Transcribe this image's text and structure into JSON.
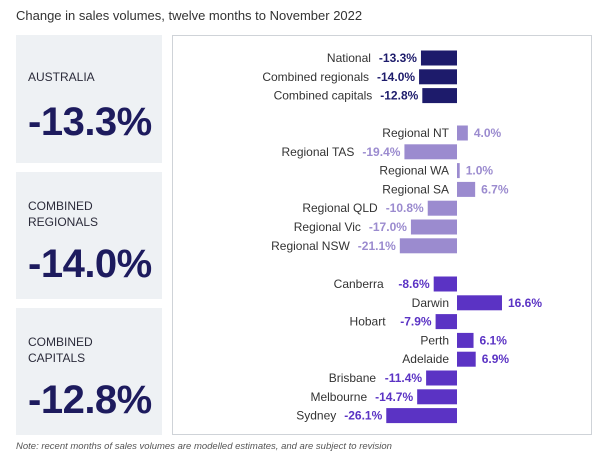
{
  "title": "Change in sales volumes, twelve months to November 2022",
  "cards": [
    {
      "label": "AUSTRALIA",
      "value": "-13.3%"
    },
    {
      "label": "COMBINED\nREGIONALS",
      "value": "-14.0%"
    },
    {
      "label": "COMBINED\nCAPITALS",
      "value": "-12.8%"
    }
  ],
  "note": "Note: recent months of sales volumes are modelled estimates, and are subject to revision",
  "colors": {
    "aggregate": "#1d1b6b",
    "regional": "#9b8bcf",
    "capital": "#5b33c4",
    "card_bg": "#eef1f4"
  },
  "chart_data": {
    "type": "bar",
    "orientation": "horizontal",
    "unit": "%",
    "groups": [
      {
        "name": "aggregates",
        "color": "#1d1b6b",
        "categories": [
          "National",
          "Combined regionals",
          "Combined capitals"
        ],
        "values": [
          -13.3,
          -14.0,
          -12.8
        ],
        "labels": [
          "-13.3%",
          "-14.0%",
          "-12.8%"
        ]
      },
      {
        "name": "regional",
        "color": "#9b8bcf",
        "categories": [
          "Regional NT",
          "Regional TAS",
          "Regional WA",
          "Regional SA",
          "Regional QLD",
          "Regional Vic",
          "Regional NSW"
        ],
        "values": [
          4.0,
          -19.4,
          1.0,
          6.7,
          -10.8,
          -17.0,
          -21.1
        ],
        "labels": [
          "4.0%",
          "-19.4%",
          "1.0%",
          "6.7%",
          "-10.8%",
          "-17.0%",
          "-21.1%"
        ]
      },
      {
        "name": "capitals",
        "color": "#5b33c4",
        "categories": [
          "Canberra",
          "Darwin",
          "Hobart",
          "Perth",
          "Adelaide",
          "Brisbane",
          "Melbourne",
          "Sydney"
        ],
        "values": [
          -8.6,
          16.6,
          -7.9,
          6.1,
          6.9,
          -11.4,
          -14.7,
          -26.1
        ],
        "labels": [
          "-8.6%",
          "16.6%",
          "-7.9%",
          "6.1%",
          "6.9%",
          "-11.4%",
          "-14.7%",
          "-26.1%"
        ]
      }
    ]
  }
}
